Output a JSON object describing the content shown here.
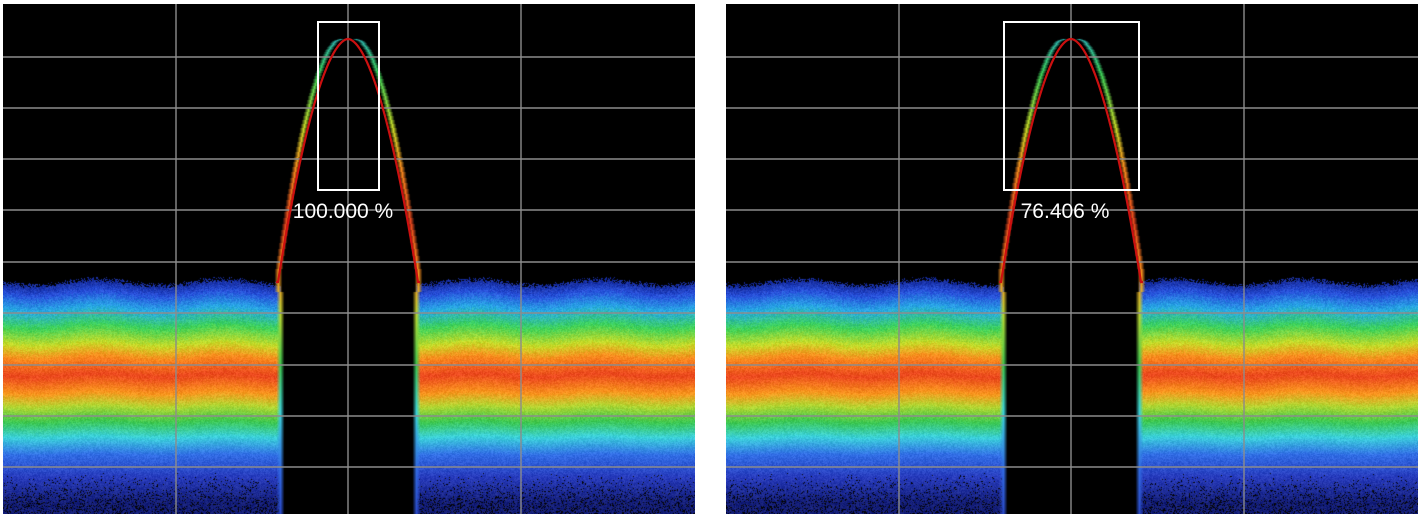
{
  "panels": [
    {
      "readout": "100.000 %",
      "mask": "narrow"
    },
    {
      "readout": "76.406 %",
      "mask": "wide"
    }
  ],
  "colors": {
    "background": "#000000",
    "grid": "#8c8c8c",
    "mask": "#ffffff",
    "trace": "#cc1010",
    "readout": "#ffffff"
  },
  "chart_data": [
    {
      "type": "heatmap",
      "title": "",
      "xlabel": "",
      "ylabel": "",
      "grid": true,
      "annotation": "100.000 %"
    },
    {
      "type": "heatmap",
      "title": "",
      "xlabel": "",
      "ylabel": "",
      "grid": true,
      "annotation": "76.406 %"
    }
  ]
}
